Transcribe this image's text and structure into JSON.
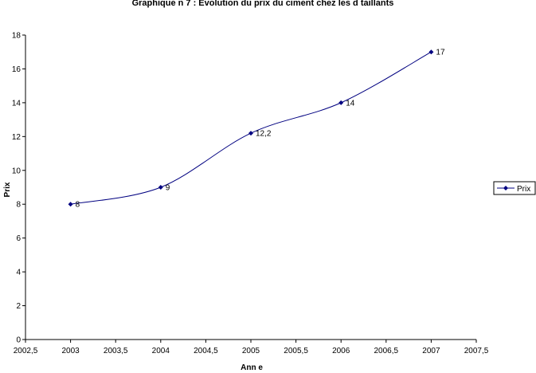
{
  "chart_data": {
    "type": "line",
    "title": "Graphique n  7 : Evolution du prix du ciment chez les d  taillants",
    "xlabel": "Ann  e",
    "ylabel": "Prix",
    "xlim": [
      2002.5,
      2007.5
    ],
    "ylim": [
      0,
      18
    ],
    "x_ticks": [
      "2002,5",
      "2003",
      "2003,5",
      "2004",
      "2004,5",
      "2005",
      "2005,5",
      "2006",
      "2006,5",
      "2007",
      "2007,5"
    ],
    "y_ticks": [
      "0",
      "2",
      "4",
      "6",
      "8",
      "10",
      "12",
      "14",
      "16",
      "18"
    ],
    "legend": "right",
    "grid": false,
    "series": [
      {
        "name": "Prix",
        "color": "#000080",
        "x": [
          2003,
          2004,
          2005,
          2006,
          2007
        ],
        "y": [
          8,
          9,
          12.2,
          14,
          17
        ],
        "labels": [
          "8",
          "9",
          "12,2",
          "14",
          "17"
        ]
      }
    ]
  }
}
